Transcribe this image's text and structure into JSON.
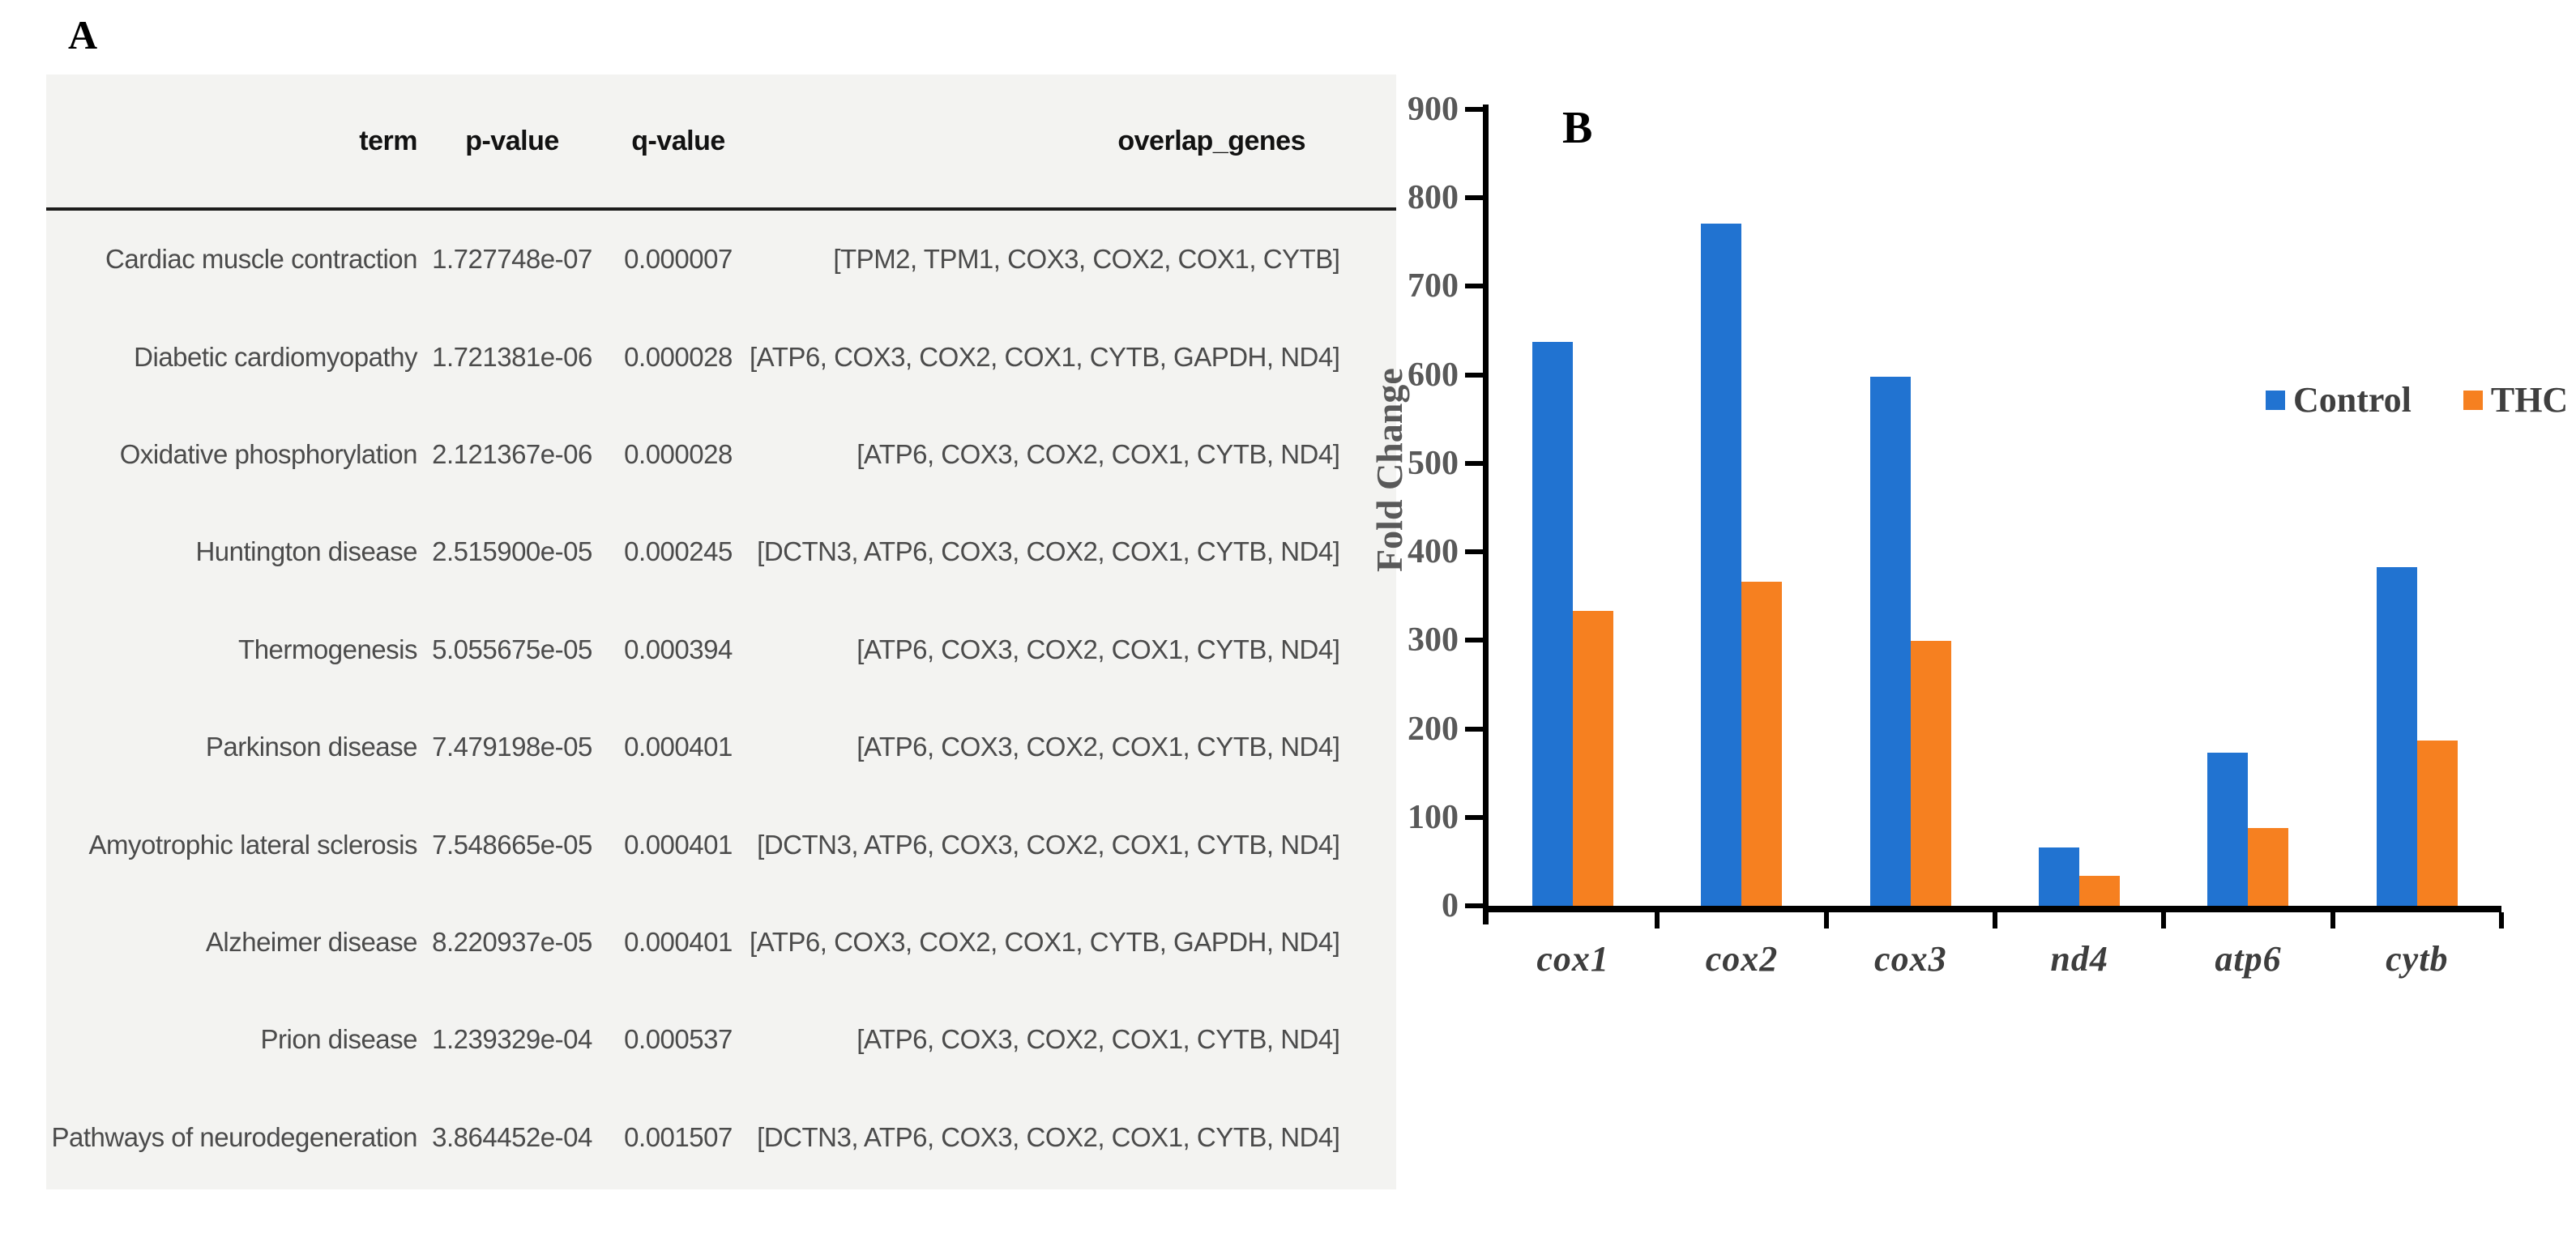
{
  "figure": {
    "panel_a_label": "A",
    "panel_b_label": "B"
  },
  "chart_data": [
    {
      "type": "table",
      "panel_label": "A",
      "columns": [
        "term",
        "p-value",
        "q-value",
        "overlap_genes"
      ],
      "rows": [
        [
          "Cardiac muscle contraction",
          "1.727748e-07",
          "0.000007",
          "[TPM2, TPM1, COX3, COX2, COX1, CYTB]"
        ],
        [
          "Diabetic cardiomyopathy",
          "1.721381e-06",
          "0.000028",
          "[ATP6, COX3, COX2, COX1, CYTB, GAPDH, ND4]"
        ],
        [
          "Oxidative phosphorylation",
          "2.121367e-06",
          "0.000028",
          "[ATP6, COX3, COX2, COX1, CYTB, ND4]"
        ],
        [
          "Huntington disease",
          "2.515900e-05",
          "0.000245",
          "[DCTN3, ATP6, COX3, COX2, COX1, CYTB, ND4]"
        ],
        [
          "Thermogenesis",
          "5.055675e-05",
          "0.000394",
          "[ATP6, COX3, COX2, COX1, CYTB, ND4]"
        ],
        [
          "Parkinson disease",
          "7.479198e-05",
          "0.000401",
          "[ATP6, COX3, COX2, COX1, CYTB, ND4]"
        ],
        [
          "Amyotrophic lateral sclerosis",
          "7.548665e-05",
          "0.000401",
          "[DCTN3, ATP6, COX3, COX2, COX1, CYTB, ND4]"
        ],
        [
          "Alzheimer disease",
          "8.220937e-05",
          "0.000401",
          "[ATP6, COX3, COX2, COX1, CYTB, GAPDH, ND4]"
        ],
        [
          "Prion disease",
          "1.239329e-04",
          "0.000537",
          "[ATP6, COX3, COX2, COX1, CYTB, ND4]"
        ],
        [
          "Pathways of neurodegeneration",
          "3.864452e-04",
          "0.001507",
          "[DCTN3, ATP6, COX3, COX2, COX1, CYTB, ND4]"
        ]
      ]
    },
    {
      "type": "bar",
      "panel_label": "B",
      "title": "",
      "xlabel": "",
      "ylabel": "Fold Change",
      "categories": [
        "cox1",
        "cox2",
        "cox3",
        "nd4",
        "atp6",
        "cytb"
      ],
      "series": [
        {
          "name": "Control",
          "color": "#2173D1",
          "values": [
            637,
            771,
            598,
            66,
            173,
            383
          ]
        },
        {
          "name": "THC",
          "color": "#F68020",
          "values": [
            333,
            366,
            299,
            34,
            88,
            187
          ]
        }
      ],
      "ylim": [
        0,
        900
      ],
      "ytick_step": 100,
      "grid": false,
      "legend_position": "inside-right",
      "axis_color": "#000000",
      "tick_label_color": "#595959"
    }
  ]
}
